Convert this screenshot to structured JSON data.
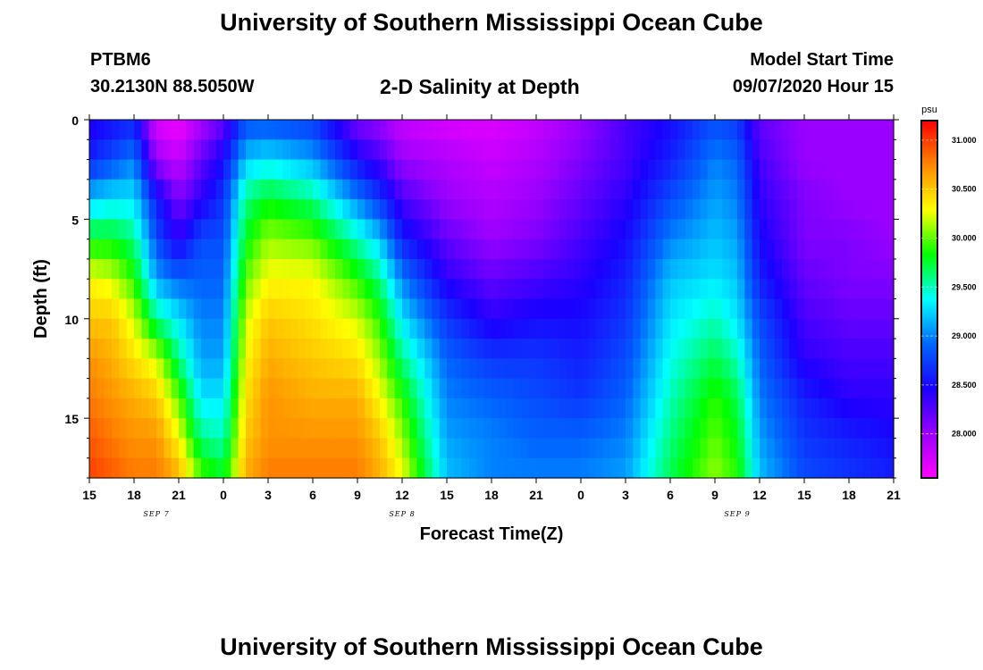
{
  "header": {
    "title": "University of Southern Mississippi Ocean Cube",
    "station_id": "PTBM6",
    "station_coords": "30.2130N 88.5050W",
    "plot_title": "2-D Salinity at Depth",
    "model_start_label": "Model Start Time",
    "model_start_value": "09/07/2020 Hour 15"
  },
  "footer": {
    "title": "University of Southern Mississippi Ocean Cube"
  },
  "chart_data": {
    "type": "heatmap",
    "title": "2-D Salinity at Depth",
    "xlabel": "Forecast Time(Z)",
    "ylabel": "Depth (ft)",
    "x_ticks": [
      "15",
      "18",
      "21",
      "0",
      "3",
      "6",
      "9",
      "12",
      "15",
      "18",
      "21",
      "0",
      "3",
      "6",
      "9",
      "12",
      "15",
      "18",
      "21"
    ],
    "x_range_hours": [
      0,
      54
    ],
    "day_labels": [
      {
        "label": "SEP 7",
        "hour": 4.5
      },
      {
        "label": "SEP 8",
        "hour": 21
      },
      {
        "label": "SEP 9",
        "hour": 43.5
      }
    ],
    "y_ticks": [
      0,
      5,
      10,
      15
    ],
    "y_range_ft": [
      0,
      18
    ],
    "colorbar": {
      "unit": "psu",
      "ticks": [
        "31.000",
        "30.500",
        "30.000",
        "29.500",
        "29.000",
        "28.500",
        "28.000"
      ],
      "tick_values": [
        31.0,
        30.5,
        30.0,
        29.5,
        29.0,
        28.5,
        28.0
      ],
      "range": [
        27.55,
        31.2
      ],
      "colors": [
        "#ff00ff",
        "#9900ff",
        "#1a00ff",
        "#0066ff",
        "#00ffff",
        "#00ff00",
        "#ffff00",
        "#ff8800",
        "#ff0000"
      ]
    },
    "depth_nodes_ft": [
      0,
      2,
      4,
      6,
      8,
      10,
      12,
      14,
      16,
      18
    ],
    "time_nodes_hours": [
      0,
      1.5,
      3,
      4.5,
      6,
      7.5,
      9,
      10.5,
      12,
      15,
      18,
      19.5,
      21,
      24,
      27,
      30,
      33,
      36,
      39,
      42,
      43.5,
      45,
      48,
      51,
      54
    ],
    "salinity_profiles_psu": [
      [
        28.4,
        28.6,
        29.2,
        29.8,
        30.3,
        30.5,
        30.7,
        30.8,
        30.9,
        31.0
      ],
      [
        28.5,
        28.8,
        29.3,
        29.8,
        30.2,
        30.5,
        30.6,
        30.7,
        30.8,
        30.9
      ],
      [
        28.6,
        29.0,
        29.3,
        29.6,
        29.9,
        30.2,
        30.4,
        30.6,
        30.7,
        30.8
      ],
      [
        27.7,
        28.0,
        28.6,
        28.8,
        29.1,
        29.6,
        30.2,
        30.5,
        30.7,
        30.8
      ],
      [
        27.6,
        27.8,
        28.1,
        28.4,
        28.9,
        29.3,
        29.6,
        30.0,
        30.3,
        30.6
      ],
      [
        27.9,
        28.2,
        28.4,
        28.8,
        28.9,
        29.0,
        29.1,
        29.3,
        29.6,
        30.0
      ],
      [
        28.2,
        28.5,
        28.7,
        28.8,
        28.9,
        29.0,
        29.1,
        29.3,
        29.5,
        29.8
      ],
      [
        28.8,
        29.2,
        29.6,
        29.8,
        30.0,
        30.2,
        30.3,
        30.4,
        30.5,
        30.6
      ],
      [
        28.8,
        29.3,
        29.8,
        30.1,
        30.3,
        30.5,
        30.6,
        30.7,
        30.7,
        30.8
      ],
      [
        28.7,
        29.1,
        29.6,
        30.0,
        30.3,
        30.4,
        30.5,
        30.6,
        30.7,
        30.8
      ],
      [
        28.1,
        28.5,
        29.0,
        29.5,
        29.9,
        30.2,
        30.4,
        30.6,
        30.7,
        30.8
      ],
      [
        28.0,
        28.3,
        28.7,
        29.2,
        29.6,
        29.9,
        30.1,
        30.3,
        30.5,
        30.6
      ],
      [
        27.8,
        28.0,
        28.3,
        28.6,
        29.0,
        29.3,
        29.6,
        29.9,
        30.1,
        30.3
      ],
      [
        27.7,
        27.9,
        28.0,
        28.2,
        28.4,
        28.7,
        28.9,
        29.0,
        29.1,
        29.2
      ],
      [
        27.7,
        27.8,
        27.9,
        28.0,
        28.2,
        28.4,
        28.7,
        28.9,
        29.0,
        29.0
      ],
      [
        27.8,
        27.9,
        28.0,
        28.1,
        28.3,
        28.5,
        28.7,
        28.8,
        28.9,
        29.0
      ],
      [
        28.0,
        28.1,
        28.2,
        28.3,
        28.4,
        28.5,
        28.6,
        28.7,
        28.9,
        29.0
      ],
      [
        28.3,
        28.3,
        28.4,
        28.5,
        28.6,
        28.7,
        28.8,
        28.9,
        29.0,
        29.1
      ],
      [
        28.5,
        28.6,
        28.8,
        29.0,
        29.2,
        29.3,
        29.4,
        29.5,
        29.6,
        29.7
      ],
      [
        28.8,
        29.0,
        29.1,
        29.2,
        29.3,
        29.5,
        29.7,
        29.9,
        30.0,
        30.1
      ],
      [
        28.7,
        28.9,
        29.0,
        29.1,
        29.2,
        29.3,
        29.5,
        29.7,
        29.8,
        29.9
      ],
      [
        28.2,
        28.3,
        28.4,
        28.5,
        28.6,
        28.8,
        28.9,
        29.0,
        29.1,
        29.2
      ],
      [
        28.0,
        28.0,
        28.1,
        28.1,
        28.2,
        28.3,
        28.4,
        28.6,
        28.7,
        28.8
      ],
      [
        28.0,
        28.0,
        28.0,
        28.1,
        28.1,
        28.2,
        28.3,
        28.4,
        28.6,
        28.7
      ],
      [
        28.0,
        28.0,
        28.0,
        28.0,
        28.1,
        28.2,
        28.3,
        28.4,
        28.5,
        28.6
      ]
    ]
  }
}
